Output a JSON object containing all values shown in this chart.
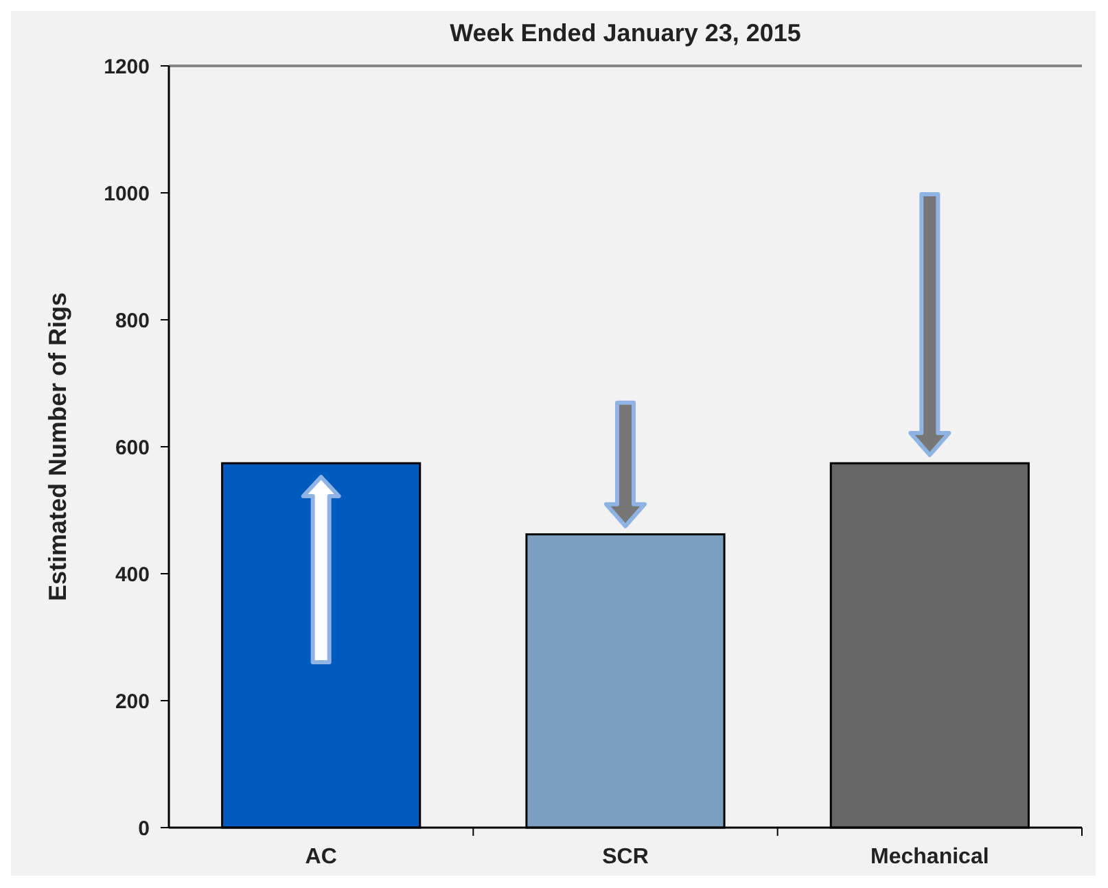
{
  "chart_data": {
    "type": "bar",
    "title": "Week Ended January 23, 2015",
    "ylabel": "Estimated Number of Rigs",
    "categories": [
      "AC",
      "SCR",
      "Mechanical"
    ],
    "values": [
      574,
      462,
      574
    ],
    "colors": [
      "#005bbf",
      "#7a9fbf",
      "#666666"
    ],
    "ylim": [
      0,
      1200
    ],
    "yticks": [
      0,
      200,
      400,
      600,
      800,
      1000,
      1200
    ],
    "grid": false
  }
}
